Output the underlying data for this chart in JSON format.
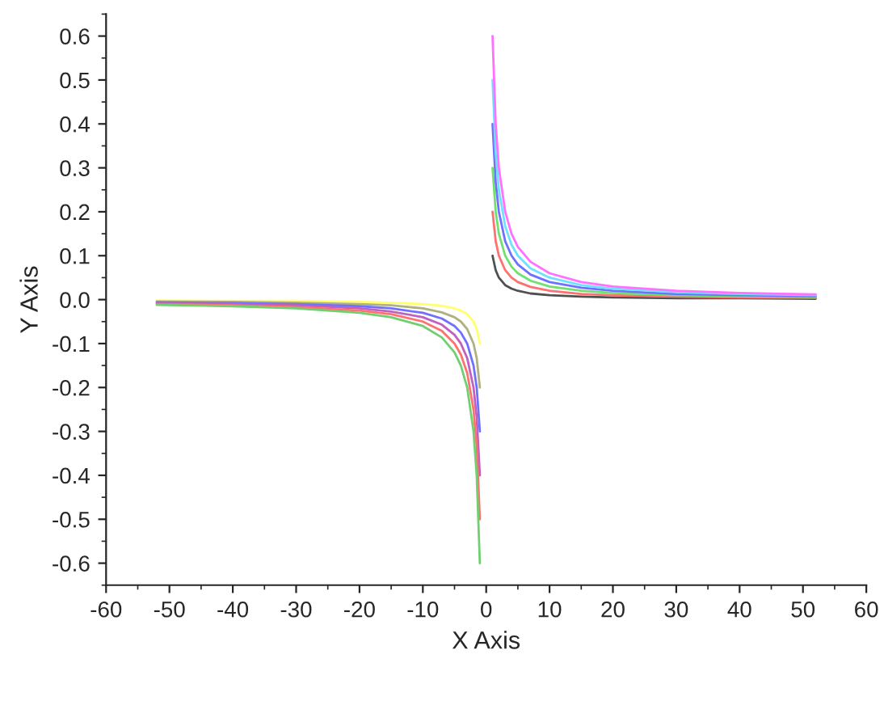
{
  "chart_data": {
    "type": "line",
    "xlabel": "X Axis",
    "ylabel": "Y Axis",
    "xlim": [
      -60,
      60
    ],
    "ylim": [
      -0.65,
      0.65
    ],
    "xticks": [
      -60,
      -50,
      -40,
      -30,
      -20,
      -10,
      0,
      10,
      20,
      30,
      40,
      50,
      60
    ],
    "yticks": [
      -0.6,
      -0.5,
      -0.4,
      -0.3,
      -0.2,
      -0.1,
      {
        "value": 0,
        "label": "0.0"
      },
      0.1,
      0.2,
      0.3,
      0.4,
      0.5,
      0.6
    ],
    "grid": false,
    "legend": false,
    "series": [
      {
        "color": "#505050",
        "x": [
          1,
          1.5,
          2,
          3,
          4,
          5,
          7,
          10,
          15,
          20,
          30,
          40,
          52
        ],
        "values": [
          0.1,
          0.067,
          0.05,
          0.033,
          0.025,
          0.02,
          0.014,
          0.01,
          0.007,
          0.005,
          0.003,
          0.003,
          0.002
        ]
      },
      {
        "color": "#ff7070",
        "x": [
          1,
          1.5,
          2,
          3,
          4,
          5,
          7,
          10,
          15,
          20,
          30,
          40,
          52
        ],
        "values": [
          0.2,
          0.133,
          0.1,
          0.067,
          0.05,
          0.04,
          0.029,
          0.02,
          0.013,
          0.01,
          0.007,
          0.005,
          0.004
        ]
      },
      {
        "color": "#70e070",
        "x": [
          1,
          1.5,
          2,
          3,
          4,
          5,
          7,
          10,
          15,
          20,
          30,
          40,
          52
        ],
        "values": [
          0.3,
          0.2,
          0.15,
          0.1,
          0.075,
          0.06,
          0.043,
          0.03,
          0.02,
          0.015,
          0.01,
          0.008,
          0.006
        ]
      },
      {
        "color": "#7070ff",
        "x": [
          1,
          1.5,
          2,
          3,
          4,
          5,
          7,
          10,
          15,
          20,
          30,
          40,
          52
        ],
        "values": [
          0.4,
          0.267,
          0.2,
          0.133,
          0.1,
          0.08,
          0.057,
          0.04,
          0.027,
          0.02,
          0.013,
          0.01,
          0.008
        ]
      },
      {
        "color": "#70e0ff",
        "x": [
          1,
          1.5,
          2,
          3,
          4,
          5,
          7,
          10,
          15,
          20,
          30,
          40,
          52
        ],
        "values": [
          0.5,
          0.333,
          0.25,
          0.167,
          0.125,
          0.1,
          0.071,
          0.05,
          0.033,
          0.025,
          0.017,
          0.013,
          0.01
        ]
      },
      {
        "color": "#ff70ff",
        "x": [
          1,
          1.5,
          2,
          3,
          4,
          5,
          7,
          10,
          15,
          20,
          30,
          40,
          52
        ],
        "values": [
          0.6,
          0.4,
          0.3,
          0.2,
          0.15,
          0.12,
          0.086,
          0.06,
          0.04,
          0.03,
          0.02,
          0.015,
          0.012
        ]
      },
      {
        "color": "#ffff70",
        "x": [
          -1,
          -1.5,
          -2,
          -3,
          -4,
          -5,
          -7,
          -10,
          -15,
          -20,
          -30,
          -40,
          -52
        ],
        "values": [
          -0.1,
          -0.067,
          -0.05,
          -0.033,
          -0.025,
          -0.02,
          -0.014,
          -0.01,
          -0.007,
          -0.005,
          -0.003,
          -0.003,
          -0.002
        ]
      },
      {
        "color": "#b0b080",
        "x": [
          -1,
          -1.5,
          -2,
          -3,
          -4,
          -5,
          -7,
          -10,
          -15,
          -20,
          -30,
          -40,
          -52
        ],
        "values": [
          -0.2,
          -0.133,
          -0.1,
          -0.067,
          -0.05,
          -0.04,
          -0.029,
          -0.02,
          -0.013,
          -0.01,
          -0.007,
          -0.005,
          -0.004
        ]
      },
      {
        "color": "#7070ff",
        "x": [
          -1,
          -1.5,
          -2,
          -3,
          -4,
          -5,
          -7,
          -10,
          -15,
          -20,
          -30,
          -40,
          -52
        ],
        "values": [
          -0.3,
          -0.2,
          -0.15,
          -0.1,
          -0.075,
          -0.06,
          -0.043,
          -0.03,
          -0.02,
          -0.015,
          -0.01,
          -0.008,
          -0.006
        ]
      },
      {
        "color": "#c060c0",
        "x": [
          -1,
          -1.5,
          -2,
          -3,
          -4,
          -5,
          -7,
          -10,
          -15,
          -20,
          -30,
          -40,
          -52
        ],
        "values": [
          -0.4,
          -0.267,
          -0.2,
          -0.133,
          -0.1,
          -0.08,
          -0.057,
          -0.04,
          -0.027,
          -0.02,
          -0.013,
          -0.01,
          -0.008
        ]
      },
      {
        "color": "#ff7070",
        "x": [
          -1,
          -1.5,
          -2,
          -3,
          -4,
          -5,
          -7,
          -10,
          -15,
          -20,
          -30,
          -40,
          -52
        ],
        "values": [
          -0.5,
          -0.333,
          -0.25,
          -0.167,
          -0.125,
          -0.1,
          -0.071,
          -0.05,
          -0.033,
          -0.025,
          -0.017,
          -0.013,
          -0.01
        ]
      },
      {
        "color": "#70d070",
        "x": [
          -1,
          -1.5,
          -2,
          -3,
          -4,
          -5,
          -7,
          -10,
          -15,
          -20,
          -30,
          -40,
          -52
        ],
        "values": [
          -0.6,
          -0.4,
          -0.3,
          -0.2,
          -0.15,
          -0.12,
          -0.086,
          -0.06,
          -0.04,
          -0.03,
          -0.02,
          -0.015,
          -0.012
        ]
      }
    ]
  }
}
